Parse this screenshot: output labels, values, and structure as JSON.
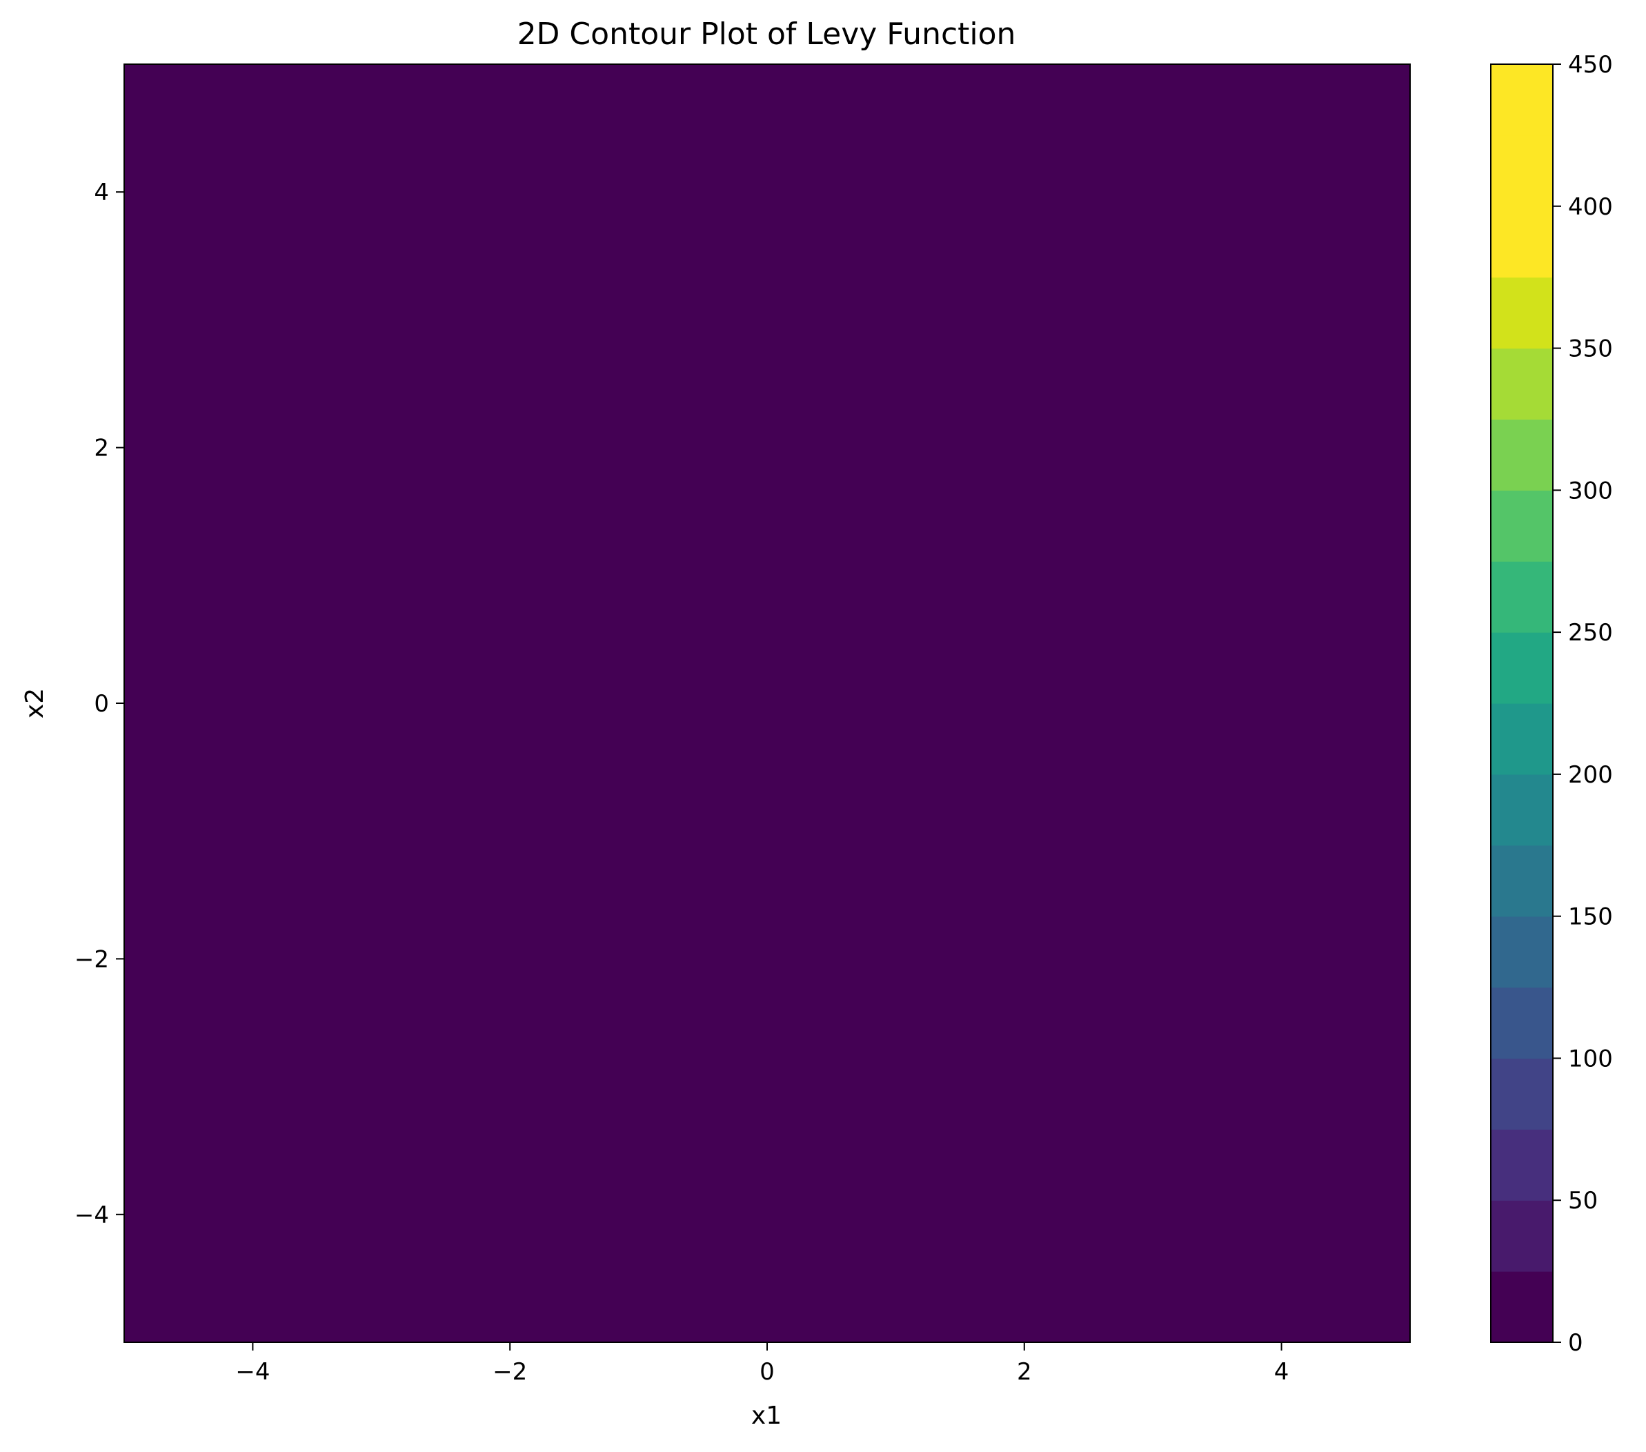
{
  "chart_data": {
    "type": "heatmap",
    "title": "2D Contour Plot of Levy Function",
    "xlabel": "x1",
    "ylabel": "x2",
    "xlim": [
      -5,
      5
    ],
    "ylim": [
      -5,
      5
    ],
    "x_ticks": [
      -4,
      -2,
      0,
      2,
      4
    ],
    "y_ticks": [
      -4,
      -2,
      0,
      2,
      4
    ],
    "x_tick_labels": [
      "−4",
      "−2",
      "0",
      "2",
      "4"
    ],
    "y_tick_labels": [
      "−4",
      "−2",
      "0",
      "2",
      "4"
    ],
    "colormap": "viridis",
    "colorbar": {
      "levels": [
        0,
        25,
        50,
        75,
        100,
        125,
        150,
        175,
        200,
        225,
        250,
        275,
        300,
        325,
        350,
        375,
        400,
        425,
        450
      ],
      "ticks": [
        0,
        50,
        100,
        150,
        200,
        250,
        300,
        350,
        400,
        450
      ],
      "tick_labels": [
        "0",
        "50",
        "100",
        "150",
        "200",
        "250",
        "300",
        "350",
        "400",
        "450"
      ],
      "band_colors": [
        "#440154",
        "#481a6c",
        "#472f7d",
        "#414487",
        "#39568c",
        "#31688e",
        "#2a788e",
        "#23888e",
        "#1f988b",
        "#22a884",
        "#35b779",
        "#54c568",
        "#7ad151",
        "#a5db36",
        "#d2e21b",
        "#fde725",
        "#fde725",
        "#fde725"
      ]
    },
    "function": "levy",
    "grid": false,
    "legend": "none"
  }
}
